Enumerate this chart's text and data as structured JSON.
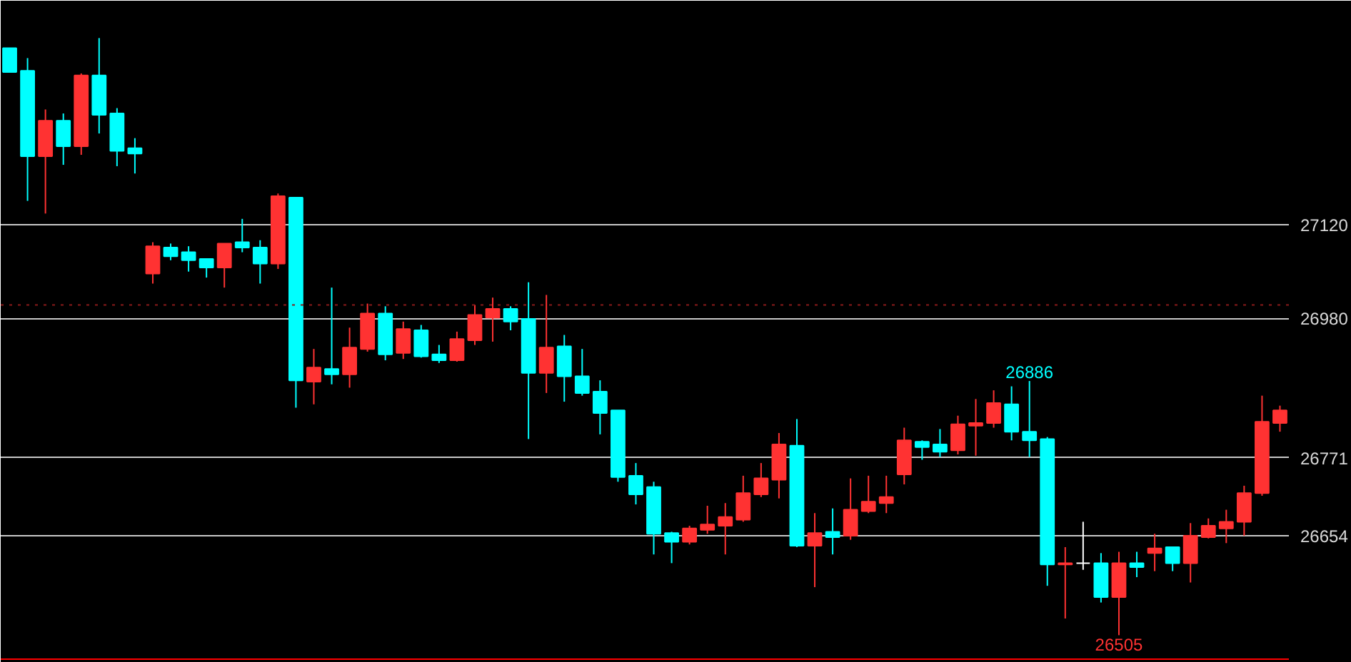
{
  "chart_data": {
    "type": "candlestick",
    "categories": [
      null,
      null,
      null,
      null,
      null,
      null,
      null,
      null,
      null,
      null,
      null,
      null,
      null,
      null,
      null,
      null,
      null,
      null,
      null,
      null,
      null,
      null,
      null,
      null,
      null,
      null,
      null,
      null,
      null,
      null,
      null,
      null,
      null,
      null,
      null,
      null,
      null,
      null,
      null,
      null,
      null,
      null,
      null,
      null,
      null,
      null,
      null,
      null,
      null,
      null,
      null,
      null,
      null,
      null,
      null,
      null,
      null,
      null,
      null,
      null,
      null,
      null,
      null,
      null,
      null,
      null,
      null,
      null,
      null,
      null,
      null,
      null
    ],
    "ohlc": [
      [
        27385,
        27385,
        27349,
        27349
      ],
      [
        27351,
        27370,
        27156,
        27223
      ],
      [
        27223,
        27293,
        27137,
        27276
      ],
      [
        27276,
        27287,
        27210,
        27238
      ],
      [
        27238,
        27347,
        27225,
        27344
      ],
      [
        27344,
        27400,
        27257,
        27285
      ],
      [
        27287,
        27295,
        27208,
        27231
      ],
      [
        27235,
        27250,
        27197,
        27227
      ],
      [
        27047,
        27094,
        27032,
        27088
      ],
      [
        27086,
        27092,
        27067,
        27073
      ],
      [
        27079,
        27088,
        27050,
        27067
      ],
      [
        27069,
        27069,
        27041,
        27056
      ],
      [
        27056,
        27092,
        27026,
        27092
      ],
      [
        27094,
        27129,
        27079,
        27086
      ],
      [
        27086,
        27097,
        27032,
        27062
      ],
      [
        27062,
        27167,
        27054,
        27163
      ],
      [
        27161,
        27161,
        26846,
        26887
      ],
      [
        26885,
        26934,
        26851,
        26906
      ],
      [
        26904,
        27026,
        26881,
        26896
      ],
      [
        26896,
        26966,
        26876,
        26936
      ],
      [
        26934,
        27002,
        26930,
        26987
      ],
      [
        26987,
        26998,
        26917,
        26926
      ],
      [
        26928,
        26975,
        26919,
        26964
      ],
      [
        26962,
        26970,
        26921,
        26923
      ],
      [
        26926,
        26940,
        26913,
        26917
      ],
      [
        26917,
        26960,
        26915,
        26949
      ],
      [
        26947,
        27000,
        26940,
        26985
      ],
      [
        26981,
        27011,
        26945,
        26994
      ],
      [
        26994,
        26998,
        26962,
        26975
      ],
      [
        26979,
        27034,
        26799,
        26898
      ],
      [
        26898,
        27015,
        26868,
        26936
      ],
      [
        26938,
        26955,
        26855,
        26893
      ],
      [
        26893,
        26934,
        26864,
        26868
      ],
      [
        26870,
        26887,
        26806,
        26838
      ],
      [
        26842,
        26842,
        26735,
        26742
      ],
      [
        26744,
        26763,
        26701,
        26716
      ],
      [
        26727,
        26735,
        26626,
        26657
      ],
      [
        26658,
        26660,
        26613,
        26645
      ],
      [
        26645,
        26669,
        26641,
        26665
      ],
      [
        26663,
        26699,
        26657,
        26671
      ],
      [
        26669,
        26703,
        26626,
        26682
      ],
      [
        26678,
        26744,
        26675,
        26718
      ],
      [
        26716,
        26763,
        26712,
        26740
      ],
      [
        26738,
        26808,
        26710,
        26791
      ],
      [
        26789,
        26829,
        26637,
        26639
      ],
      [
        26639,
        26688,
        26577,
        26658
      ],
      [
        26660,
        26695,
        26626,
        26652
      ],
      [
        26654,
        26740,
        26648,
        26693
      ],
      [
        26691,
        26744,
        26688,
        26705
      ],
      [
        26703,
        26744,
        26688,
        26712
      ],
      [
        26746,
        26816,
        26731,
        26797
      ],
      [
        26795,
        26797,
        26768,
        26787
      ],
      [
        26791,
        26814,
        26772,
        26780
      ],
      [
        26782,
        26834,
        26776,
        26821
      ],
      [
        26819,
        26859,
        26774,
        26823
      ],
      [
        26823,
        26872,
        26816,
        26853
      ],
      [
        26851,
        26878,
        26797,
        26810
      ],
      [
        26810,
        26886,
        26772,
        26797
      ],
      [
        26799,
        26802,
        26579,
        26611
      ],
      [
        26611,
        26637,
        26530,
        26613
      ],
      [
        26613,
        26675,
        26603,
        26613
      ],
      [
        26613,
        26628,
        26554,
        26562
      ],
      [
        26562,
        26630,
        26505,
        26613
      ],
      [
        26613,
        26630,
        26592,
        26607
      ],
      [
        26628,
        26657,
        26601,
        26635
      ],
      [
        26637,
        26637,
        26601,
        26613
      ],
      [
        26613,
        26673,
        26584,
        26654
      ],
      [
        26652,
        26680,
        26650,
        26669
      ],
      [
        26665,
        26693,
        26643,
        26675
      ],
      [
        26675,
        26729,
        26654,
        26718
      ],
      [
        26718,
        26864,
        26714,
        26825
      ],
      [
        26823,
        26849,
        26810,
        26842
      ]
    ],
    "colors": [
      "#00ffff",
      "#00ffff",
      "#ff3232",
      "#00ffff",
      "#ff3232",
      "#00ffff",
      "#00ffff",
      "#00ffff",
      "#ff3232",
      "#00ffff",
      "#00ffff",
      "#00ffff",
      "#ff3232",
      "#00ffff",
      "#00ffff",
      "#ff3232",
      "#00ffff",
      "#ff3232",
      "#00ffff",
      "#ff3232",
      "#ff3232",
      "#00ffff",
      "#ff3232",
      "#00ffff",
      "#00ffff",
      "#ff3232",
      "#ff3232",
      "#ff3232",
      "#00ffff",
      "#00ffff",
      "#ff3232",
      "#00ffff",
      "#00ffff",
      "#00ffff",
      "#00ffff",
      "#00ffff",
      "#00ffff",
      "#00ffff",
      "#ff3232",
      "#ff3232",
      "#ff3232",
      "#ff3232",
      "#ff3232",
      "#ff3232",
      "#00ffff",
      "#ff3232",
      "#00ffff",
      "#ff3232",
      "#ff3232",
      "#ff3232",
      "#ff3232",
      "#00ffff",
      "#00ffff",
      "#ff3232",
      "#ff3232",
      "#ff3232",
      "#00ffff",
      "#00ffff",
      "#00ffff",
      "#ff3232",
      "#ffffff",
      "#00ffff",
      "#ff3232",
      "#00ffff",
      "#ff3232",
      "#00ffff",
      "#ff3232",
      "#ff3232",
      "#ff3232",
      "#ff3232",
      "#ff3232",
      "#ff3232"
    ],
    "ylim": [
      26468,
      27456
    ],
    "yticks": [
      26654,
      26771,
      26980,
      27120
    ],
    "tick_labels": "y",
    "grid": "y",
    "ref_lines": [
      {
        "axis": "y",
        "value": 27000,
        "label": null,
        "color": "#8b1a1a",
        "line_style": "dotted"
      }
    ],
    "annotations": [
      {
        "text": "26886",
        "y": 26886
      },
      {
        "text": "26505",
        "y": 26505
      }
    ]
  }
}
